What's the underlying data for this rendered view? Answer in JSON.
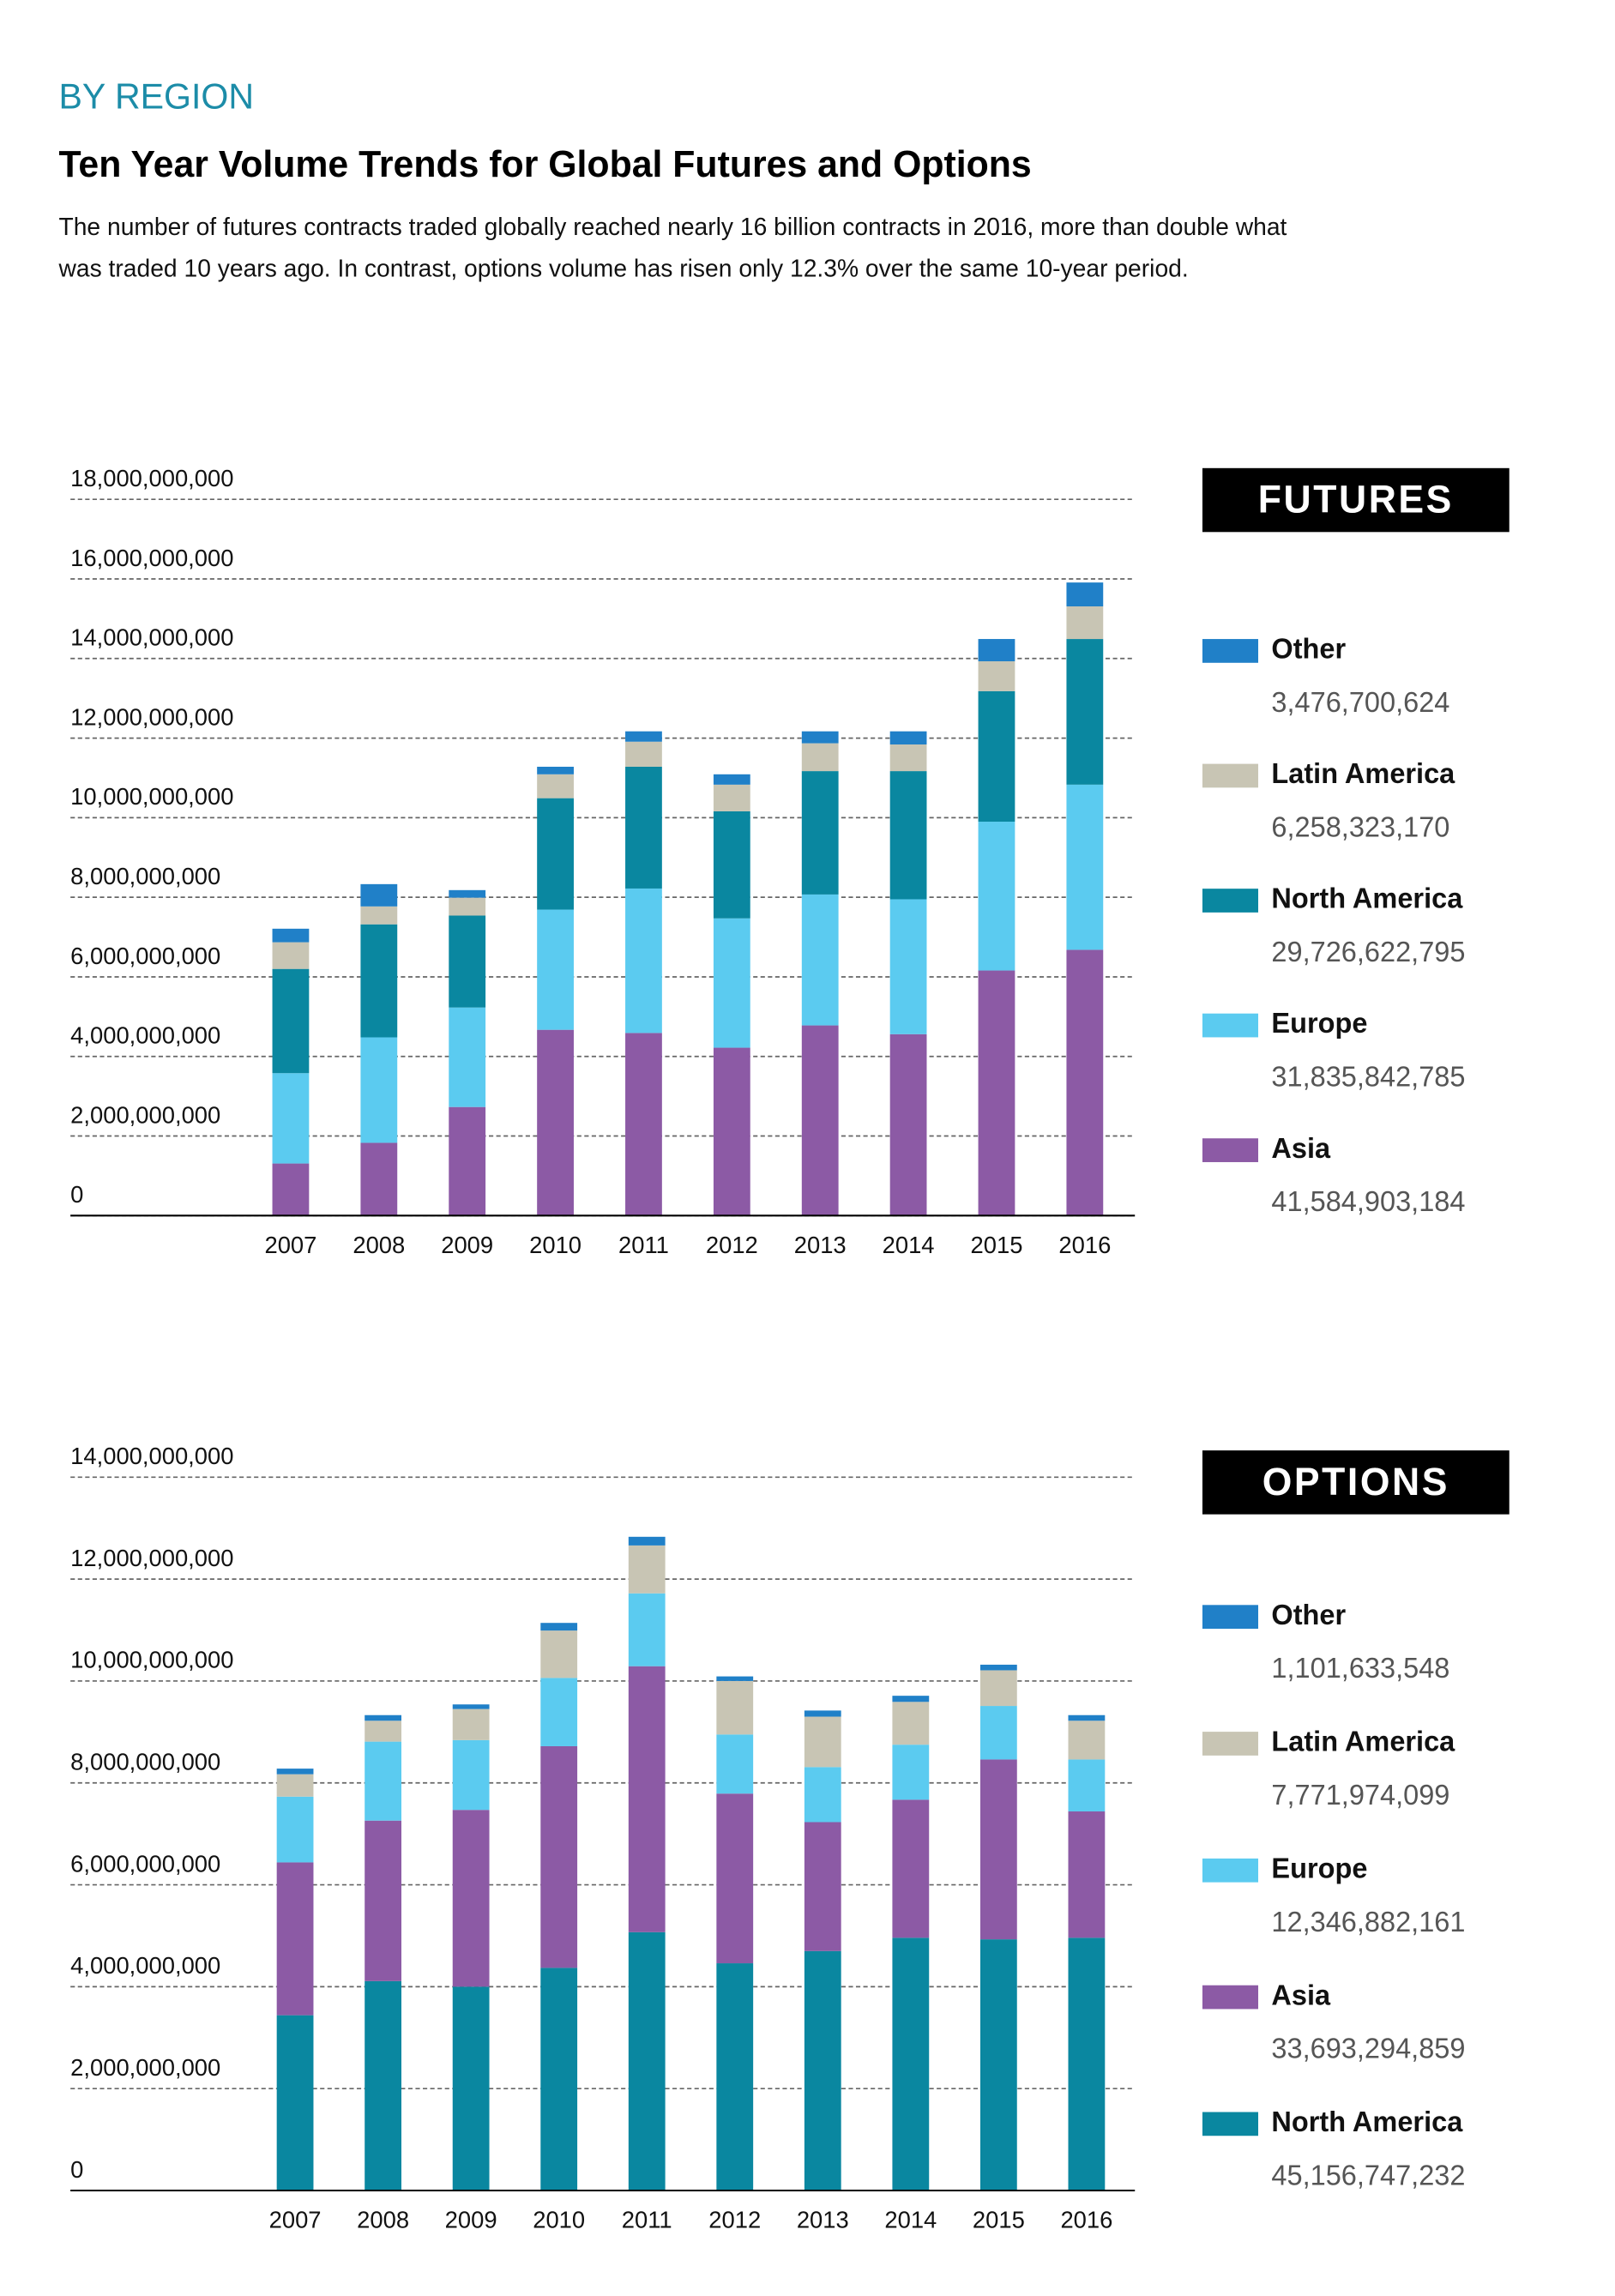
{
  "header": {
    "kicker": "BY REGION",
    "title": "Ten Year Volume Trends for Global Futures and Options",
    "subtitle": [
      "The number of futures contracts traded globally reached nearly 16 billion contracts in 2016, more than double what",
      "was traded 10 years ago. In contrast, options volume has risen only 12.3% over the same 10-year period."
    ]
  },
  "chart_data": [
    {
      "type": "bar",
      "stacked": true,
      "title": "FUTURES",
      "grid": true,
      "categories": [
        "2007",
        "2008",
        "2009",
        "2010",
        "2011",
        "2012",
        "2013",
        "2014",
        "2015",
        "2016"
      ],
      "ylim": [
        0,
        18000000000
      ],
      "yticks": [
        0,
        {
          "value": 2000000000,
          "label": "2,000,000,000"
        },
        {
          "value": 4000000000,
          "label": "4,000,000,000"
        },
        {
          "value": 6000000000,
          "label": "6,000,000,000"
        },
        {
          "value": 8000000000,
          "label": "8,000,000,000"
        },
        {
          "value": 10000000000,
          "label": "10,000,000,000"
        },
        {
          "value": 12000000000,
          "label": "12,000,000,000"
        },
        {
          "value": 14000000000,
          "label": "14,000,000,000"
        },
        {
          "value": 16000000000,
          "label": "16,000,000,000"
        },
        {
          "value": 18000000000,
          "label": "18,000,000,000"
        }
      ],
      "series": [
        {
          "name": "Asia",
          "color": "#8c5aa5",
          "total": "41,584,903,184",
          "values": [
            1310000000,
            1830000000,
            2730000000,
            4670000000,
            4590000000,
            4220000000,
            4780000000,
            4560000000,
            6160000000,
            6680000000
          ]
        },
        {
          "name": "Europe",
          "color": "#5bcbf0",
          "total": "31,835,842,785",
          "values": [
            2270000000,
            2650000000,
            2500000000,
            3020000000,
            3630000000,
            3250000000,
            3290000000,
            3390000000,
            3740000000,
            4150000000
          ]
        },
        {
          "name": "North America",
          "color": "#0a87a0",
          "total": "29,726,622,795",
          "values": [
            2620000000,
            2840000000,
            2310000000,
            2800000000,
            3060000000,
            2690000000,
            3100000000,
            3220000000,
            3280000000,
            3660000000
          ]
        },
        {
          "name": "Latin America",
          "color": "#c8c5b4",
          "total": "6,258,323,170",
          "values": [
            670000000,
            450000000,
            450000000,
            600000000,
            630000000,
            670000000,
            700000000,
            670000000,
            750000000,
            820000000
          ]
        },
        {
          "name": "Other",
          "color": "#2080c8",
          "total": "3,476,700,624",
          "values": [
            340000000,
            560000000,
            190000000,
            190000000,
            260000000,
            260000000,
            300000000,
            330000000,
            560000000,
            600000000
          ]
        }
      ]
    },
    {
      "type": "bar",
      "stacked": true,
      "title": "OPTIONS",
      "grid": true,
      "categories": [
        "2007",
        "2008",
        "2009",
        "2010",
        "2011",
        "2012",
        "2013",
        "2014",
        "2015",
        "2016"
      ],
      "ylim": [
        0,
        14000000000
      ],
      "yticks": [
        0,
        {
          "value": 2000000000,
          "label": "2,000,000,000"
        },
        {
          "value": 4000000000,
          "label": "4,000,000,000"
        },
        {
          "value": 6000000000,
          "label": "6,000,000,000"
        },
        {
          "value": 8000000000,
          "label": "8,000,000,000"
        },
        {
          "value": 10000000000,
          "label": "10,000,000,000"
        },
        {
          "value": 12000000000,
          "label": "12,000,000,000"
        },
        {
          "value": 14000000000,
          "label": "14,000,000,000"
        }
      ],
      "series": [
        {
          "name": "North America",
          "color": "#0a87a0",
          "total": "45,156,747,232",
          "values": [
            3440000000,
            4110000000,
            4000000000,
            4370000000,
            5070000000,
            4460000000,
            4700000000,
            4960000000,
            4930000000,
            4960000000
          ]
        },
        {
          "name": "Asia",
          "color": "#8c5aa5",
          "total": "33,693,294,859",
          "values": [
            3000000000,
            3150000000,
            3470000000,
            4350000000,
            5220000000,
            3330000000,
            2530000000,
            2710000000,
            3530000000,
            2480000000
          ]
        },
        {
          "name": "Europe",
          "color": "#5bcbf0",
          "total": "12,346,882,161",
          "values": [
            1290000000,
            1550000000,
            1370000000,
            1340000000,
            1430000000,
            1160000000,
            1080000000,
            1080000000,
            1050000000,
            1020000000
          ]
        },
        {
          "name": "Latin America",
          "color": "#c8c5b4",
          "total": "7,771,974,099",
          "values": [
            440000000,
            410000000,
            610000000,
            930000000,
            940000000,
            1050000000,
            990000000,
            840000000,
            700000000,
            760000000
          ]
        },
        {
          "name": "Other",
          "color": "#2080c8",
          "total": "1,101,633,548",
          "values": [
            110000000,
            110000000,
            90000000,
            150000000,
            170000000,
            90000000,
            120000000,
            120000000,
            110000000,
            110000000
          ]
        }
      ]
    }
  ]
}
